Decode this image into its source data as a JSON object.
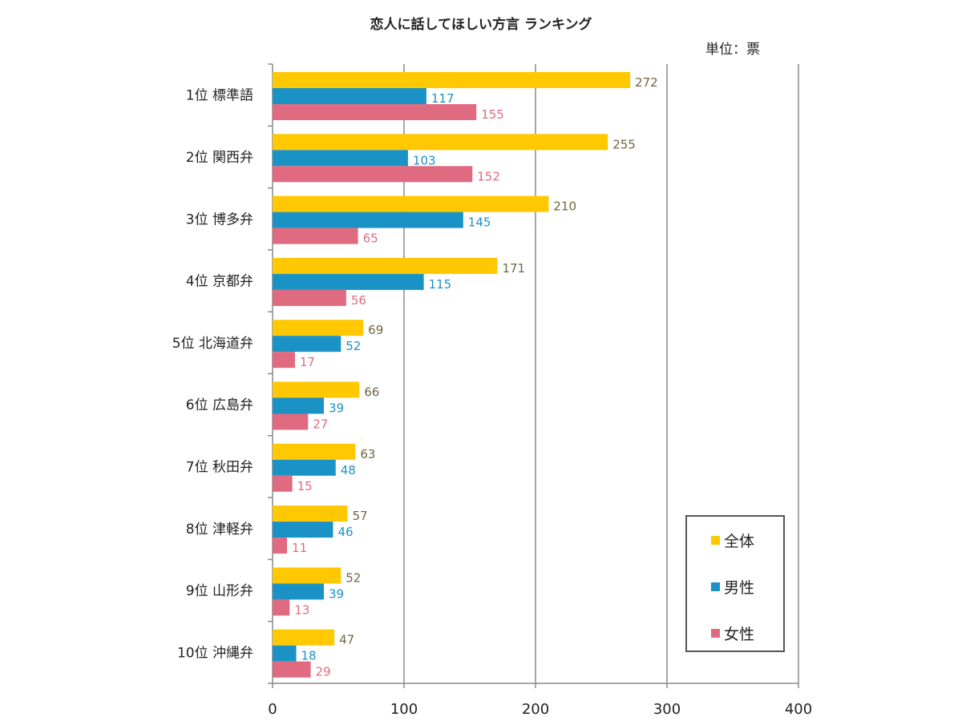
{
  "chart_data": {
    "type": "bar",
    "orientation": "horizontal",
    "title": "恋人に話してほしい方言 ランキング",
    "unit_label": "単位：票",
    "categories": [
      "1位  標準語",
      "2位  関西弁",
      "3位  博多弁",
      "4位  京都弁",
      "5位  北海道弁",
      "6位  広島弁",
      "7位  秋田弁",
      "8位  津軽弁",
      "9位  山形弁",
      "10位  沖縄弁"
    ],
    "series": [
      {
        "name": "全体",
        "color": "#FFC800",
        "label_color": "#6E6640",
        "values": [
          272,
          255,
          210,
          171,
          69,
          66,
          63,
          57,
          52,
          47
        ]
      },
      {
        "name": "男性",
        "color": "#1A92C6",
        "label_color": "#1A92C6",
        "values": [
          117,
          103,
          145,
          115,
          52,
          39,
          48,
          46,
          39,
          18
        ]
      },
      {
        "name": "女性",
        "color": "#E06A80",
        "label_color": "#E06A80",
        "values": [
          155,
          152,
          65,
          56,
          17,
          27,
          15,
          11,
          13,
          29
        ]
      }
    ],
    "xlim": [
      0,
      400
    ],
    "xticks": [
      "0",
      "100",
      "200",
      "300",
      "400"
    ],
    "grid": true,
    "legend_position": "bottom-right"
  }
}
